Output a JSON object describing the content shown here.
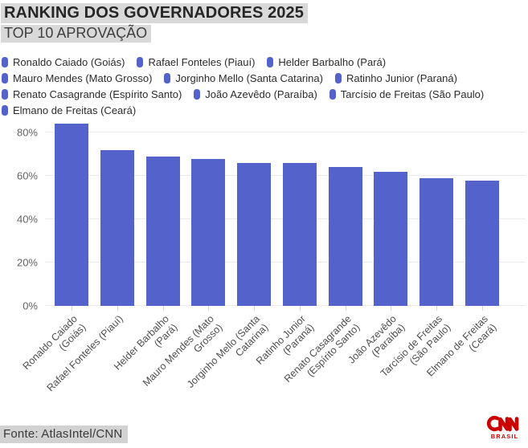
{
  "header": {
    "title": "RANKING DOS GOVERNADORES 2025",
    "subtitle": "TOP 10 APROVAÇÃO"
  },
  "chart_data": {
    "type": "bar",
    "title": "RANKING DOS GOVERNADORES 2025",
    "subtitle": "TOP 10 APROVAÇÃO",
    "unit": "%",
    "legend_position": "top",
    "grid": "horizontal",
    "ylim": [
      0,
      86
    ],
    "y_tick_values": [
      0,
      20,
      40,
      60,
      80
    ],
    "y_tick_labels": [
      "0%",
      "20%",
      "40%",
      "60%",
      "80%"
    ],
    "legend": [
      "Ronaldo Caiado (Goiás)",
      "Rafael Fonteles (Piauí)",
      "Helder Barbalho (Pará)",
      "Mauro Mendes (Mato Grosso)",
      "Jorginho Mello (Santa Catarina)",
      "Ratinho Junior (Paraná)",
      "Renato Casagrande (Espírito Santo)",
      "João Azevêdo (Paraíba)",
      "Tarcísio de Freitas (São Paulo)",
      "Elmano de Freitas (Ceará)"
    ],
    "categories": [
      "Ronaldo Caiado\n(Goiás)",
      "Rafael Fonteles (Piauí)",
      "Helder Barbalho\n(Pará)",
      "Mauro Mendes (Mato\nGrosso)",
      "Jorginho Mello (Santa\nCatarina)",
      "Ratinho Junior\n(Paraná)",
      "Renato Casagrande\n(Espírito Santo)",
      "João Azevêdo\n(Paraíba)",
      "Tarcísio de Freitas\n(São Paulo)",
      "Elmano de Freitas\n(Ceará)"
    ],
    "values": [
      84,
      72,
      69,
      68,
      66,
      66,
      64,
      62,
      59,
      58
    ],
    "bar_color": "#5363cb"
  },
  "footer": {
    "source": "Fonte: AtlasIntel/CNN",
    "logo_brand": "CNN",
    "logo_brasil": "BRASIL"
  },
  "colors": {
    "bar": "#5363cb",
    "highlight_bg": "#d9d9d9",
    "grid": "#ebebeb",
    "cnn_red": "#cc0000"
  }
}
